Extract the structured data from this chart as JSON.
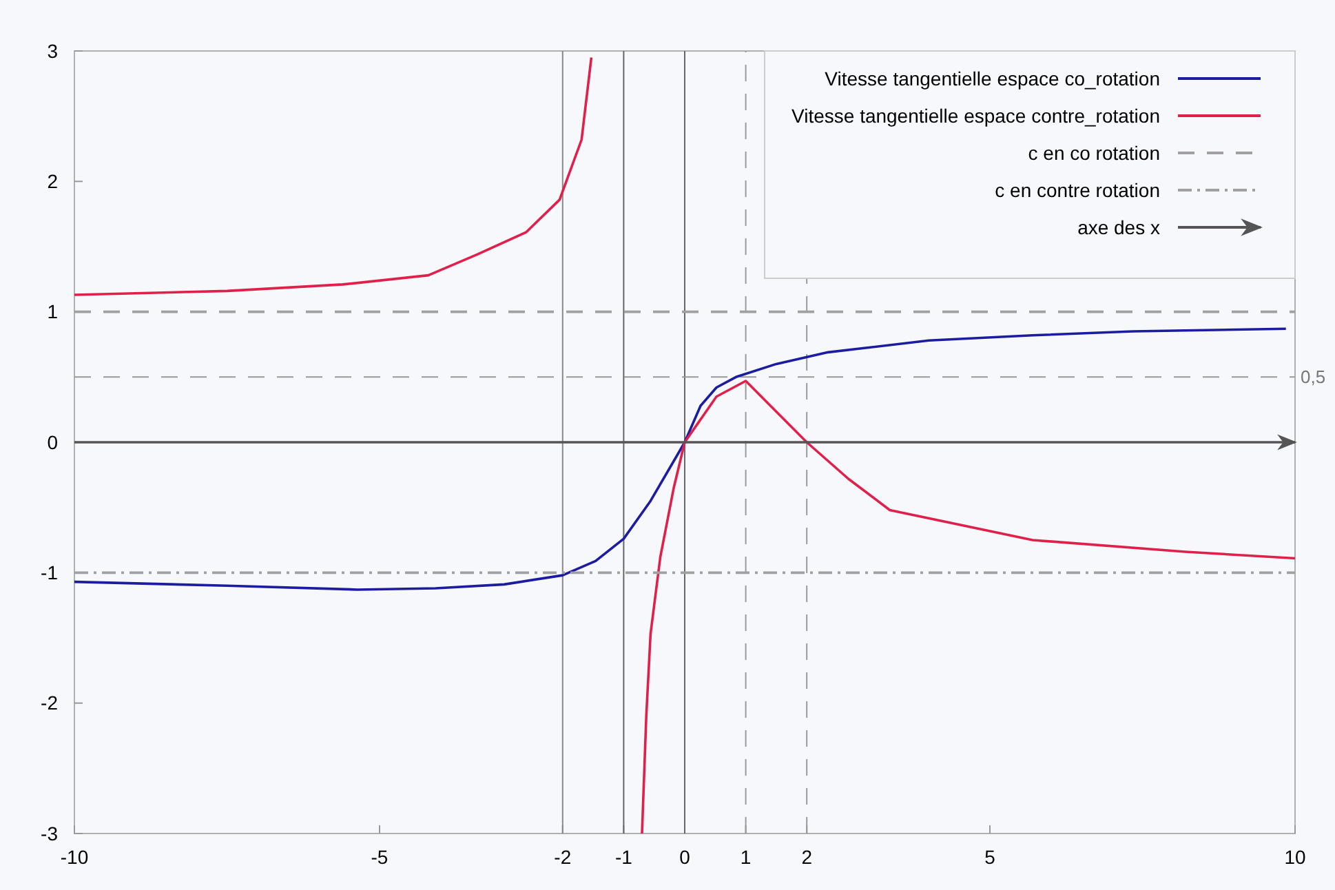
{
  "chart_data": {
    "type": "line",
    "xlim": [
      -10,
      10
    ],
    "ylim": [
      -3,
      3
    ],
    "xticks": [
      -10,
      -5,
      -2,
      -1,
      0,
      1,
      2,
      5,
      10
    ],
    "yticks": [
      -3,
      -2,
      -1,
      0,
      1,
      2,
      3
    ],
    "grid": false,
    "legend": "top right",
    "marker": "none",
    "series": [
      {
        "name": "Vitesse tangentielle espace co_rotation",
        "color": "#1c1ca0",
        "line_style": "solid",
        "x": [
          -10,
          -7.5,
          -5.36,
          -4.08,
          -2.96,
          -2,
          -1.46,
          -1,
          -0.56,
          0,
          0.26,
          0.52,
          0.84,
          1.5,
          2.35,
          4,
          5.7,
          7.35,
          9.85
        ],
        "values": [
          -1.07,
          -1.1,
          -1.13,
          -1.12,
          -1.09,
          -1.02,
          -0.91,
          -0.74,
          -0.45,
          0,
          0.28,
          0.42,
          0.5,
          0.6,
          0.69,
          0.78,
          0.82,
          0.85,
          0.87
        ]
      },
      {
        "name": "Vitesse tangentielle espace contre_rotation",
        "color": "#e0204a",
        "line_style": "solid",
        "x": [
          -10,
          -7.5,
          -5.6,
          -4.2,
          -3.4,
          -2.6,
          -2.05,
          -1.69,
          -1.53,
          -0.7,
          -0.63,
          -0.56,
          -0.4,
          -0.18,
          0,
          0.52,
          1,
          2,
          2.68,
          3.36,
          5.7,
          8.2,
          10
        ],
        "values": [
          1.13,
          1.16,
          1.21,
          1.28,
          1.44,
          1.61,
          1.86,
          2.32,
          2.95,
          -3,
          -2.1,
          -1.47,
          -0.88,
          -0.35,
          0,
          0.35,
          0.47,
          0,
          -0.28,
          -0.52,
          -0.75,
          -0.84,
          -0.89
        ]
      },
      {
        "name": "c en co rotation",
        "color": "#a0a0a0",
        "line_style": "dashed",
        "x": [
          -10,
          10
        ],
        "values": [
          1,
          1
        ]
      },
      {
        "name": "c en contre rotation",
        "color": "#a0a0a0",
        "line_style": "dotted",
        "x": [
          -10,
          10
        ],
        "values": [
          -1,
          -1
        ]
      },
      {
        "name": "axe des x",
        "color": "#555555",
        "line_style": "solid",
        "x": [
          -10,
          10
        ],
        "values": [
          0,
          0
        ]
      }
    ],
    "ref_lines": [
      {
        "axis": "x",
        "value": -2,
        "line_style": "solid",
        "color": "#888888"
      },
      {
        "axis": "x",
        "value": -1,
        "line_style": "solid",
        "color": "#666666"
      },
      {
        "axis": "x",
        "value": 0,
        "line_style": "solid",
        "color": "#666666"
      },
      {
        "axis": "x",
        "value": 1,
        "line_style": "dashed",
        "color": "#999999"
      },
      {
        "axis": "x",
        "value": 2,
        "line_style": "dashed",
        "color": "#999999"
      },
      {
        "axis": "y",
        "value": 0.5,
        "label": "0,5",
        "line_style": "dashed",
        "color": "#999999"
      }
    ]
  }
}
